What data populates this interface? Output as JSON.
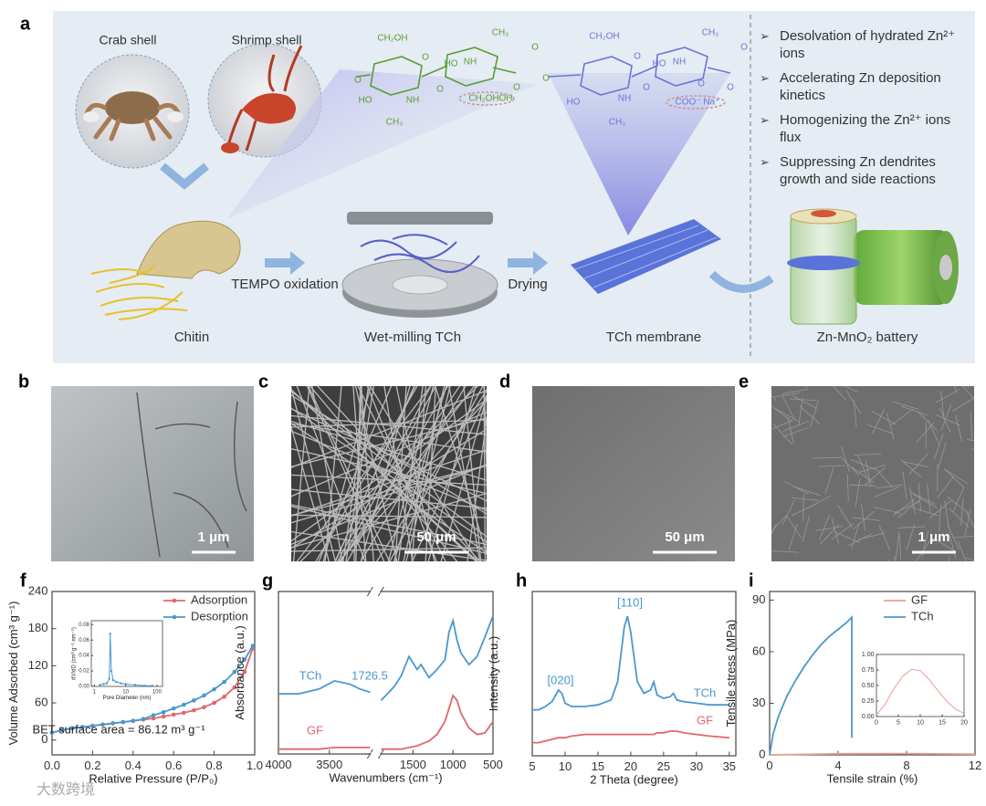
{
  "figure": {
    "panel_a": {
      "label": "a",
      "sources": [
        "Crab shell",
        "Shrimp shell"
      ],
      "steps": [
        "Chitin",
        "TEMPO oxidation",
        "Wet-milling TCh",
        "Drying",
        "TCh membrane",
        "Zn-MnO₂ battery"
      ],
      "benefits": [
        "Desolvation of hydrated Zn²⁺ ions",
        "Accelerating Zn deposition kinetics",
        "Homogenizing the Zn²⁺ ions flux",
        "Suppressing Zn dendrites growth and side reactions"
      ],
      "chemistry": [
        "CH₂OH",
        "O",
        "O",
        "HO",
        "NH",
        "O",
        "CH₃",
        "CH₃",
        "O",
        "NH",
        "HO",
        "O",
        "CH₂OH",
        "OH",
        "O",
        "CH₂OH",
        "O",
        "HO",
        "NH",
        "O",
        "CH₃",
        "CH₃",
        "O",
        "NH",
        "HO",
        "O",
        "COO⁻ Na⁺",
        "O"
      ]
    },
    "images": [
      {
        "label": "b",
        "scale_bar": "1 μm"
      },
      {
        "label": "c",
        "scale_bar": "50 μm"
      },
      {
        "label": "d",
        "scale_bar": "50 μm"
      },
      {
        "label": "e",
        "scale_bar": "1 μm"
      }
    ],
    "watermark": "大数跨境"
  },
  "chart_data": [
    {
      "type": "line",
      "panel_label": "f",
      "x_label": "Relative Pressure (P/P₀)",
      "y_label": "Volume Adsorbed (cm³ g⁻¹)",
      "xlim": [
        0,
        1
      ],
      "ylim": [
        -24,
        240
      ],
      "xticks": [
        {
          "value": 0,
          "label": "0.0"
        },
        {
          "value": 0.2,
          "label": "0.2"
        },
        {
          "value": 0.4,
          "label": "0.4"
        },
        {
          "value": 0.6,
          "label": "0.6"
        },
        {
          "value": 0.8,
          "label": "0.8"
        },
        {
          "value": 1,
          "label": "1.0"
        }
      ],
      "yticks": [
        0,
        60,
        120,
        180,
        240
      ],
      "legend": "upper right",
      "annotations": [
        "BET surface area = 86.12 m³ g⁻¹"
      ],
      "x": [
        0,
        0.05,
        0.1,
        0.15,
        0.2,
        0.25,
        0.3,
        0.35,
        0.4,
        0.45,
        0.5,
        0.55,
        0.6,
        0.65,
        0.7,
        0.75,
        0.8,
        0.85,
        0.9,
        0.95,
        0.99
      ],
      "series": [
        {
          "name": "Adsorption",
          "color": "#e0676b",
          "marker": "circle",
          "values": [
            12,
            16,
            19,
            21,
            23,
            25,
            27,
            29,
            31,
            33,
            35,
            38,
            41,
            44,
            48,
            53,
            60,
            70,
            85,
            110,
            148
          ]
        },
        {
          "name": "Desorption",
          "color": "#4a97cf",
          "marker": "circle",
          "values": [
            12,
            16,
            19,
            21,
            23,
            25,
            27,
            29,
            31,
            34,
            40,
            45,
            51,
            57,
            64,
            72,
            82,
            94,
            110,
            130,
            152
          ]
        }
      ],
      "inset": {
        "type": "line",
        "x_label": "Pore Diameter (nm)",
        "y_label": "dV/dD (cm³ g⁻¹ nm⁻¹)",
        "xlog": true,
        "xlim": [
          0.8,
          150
        ],
        "ylim": [
          0,
          0.085
        ],
        "xticks": [
          1,
          10,
          100
        ],
        "yticks": [
          {
            "value": 0,
            "label": "0.00"
          },
          {
            "value": 0.02,
            "label": "0.02"
          },
          {
            "value": 0.04,
            "label": "0.04"
          },
          {
            "value": 0.06,
            "label": "0.06"
          },
          {
            "value": 0.08,
            "label": "0.08"
          }
        ],
        "series": [
          {
            "color": "#4a97cf",
            "marker": "circle",
            "x": [
              1.5,
              2,
              2.5,
              3,
              3.2,
              3.5,
              4,
              5,
              7,
              10,
              20,
              40,
              70
            ],
            "values": [
              0.002,
              0.003,
              0.004,
              0.01,
              0.068,
              0.02,
              0.008,
              0.006,
              0.004,
              0.003,
              0.002,
              0.001,
              0.001
            ]
          }
        ]
      }
    },
    {
      "type": "line",
      "panel_label": "g",
      "x_label": "Wavenumbers (cm⁻¹)",
      "y_label": "Absorbance (a.u.)",
      "xlim": [
        4000,
        500
      ],
      "x_break": [
        3100,
        1900
      ],
      "ylim": [
        0,
        100
      ],
      "xticks": [
        4000,
        3500,
        1500,
        1000,
        500
      ],
      "annotations": [
        "1726.5"
      ],
      "x": [
        4000,
        3800,
        3600,
        3450,
        3300,
        3200,
        3100,
        2500,
        1900,
        1800,
        1726.5,
        1650,
        1550,
        1450,
        1400,
        1300,
        1200,
        1100,
        1050,
        1000,
        950,
        900,
        800,
        700,
        600,
        500
      ],
      "series": [
        {
          "name": "TCh",
          "color": "#4a97cf",
          "values": [
            37,
            37,
            40,
            45,
            43,
            40,
            38,
            null,
            33,
            38,
            42,
            48,
            60,
            52,
            55,
            47,
            52,
            58,
            75,
            82,
            70,
            62,
            55,
            60,
            72,
            85
          ]
        },
        {
          "name": "GF",
          "color": "#e0676b",
          "values": [
            3,
            3,
            3,
            4,
            4,
            4,
            4,
            null,
            3,
            3,
            3,
            3,
            4,
            5,
            6,
            8,
            12,
            20,
            28,
            36,
            33,
            25,
            16,
            12,
            13,
            20
          ]
        }
      ]
    },
    {
      "type": "line",
      "panel_label": "h",
      "x_label": "2 Theta (degree)",
      "y_label": "Intensity (a.u.)",
      "xlim": [
        5,
        36
      ],
      "ylim": [
        0,
        100
      ],
      "xticks": [
        5,
        10,
        15,
        20,
        25,
        30,
        35
      ],
      "annotations": [
        "[020]",
        "[110]"
      ],
      "x": [
        5,
        6,
        7,
        8,
        9,
        9.5,
        10,
        11,
        13,
        15,
        17,
        18,
        19,
        19.5,
        20,
        21,
        22,
        23,
        23.5,
        24,
        25,
        26,
        26.5,
        27,
        28,
        30,
        32,
        35
      ],
      "series": [
        {
          "name": "TCh",
          "color": "#4a97cf",
          "values": [
            28,
            28,
            30,
            33,
            40,
            38,
            32,
            30,
            30,
            31,
            34,
            45,
            78,
            85,
            75,
            45,
            38,
            40,
            45,
            37,
            35,
            36,
            38,
            34,
            33,
            32,
            31,
            31
          ]
        },
        {
          "name": "GF",
          "color": "#e0676b",
          "values": [
            8,
            8,
            9,
            10,
            11,
            11,
            11,
            12,
            13,
            13,
            13,
            13,
            13,
            13,
            13,
            13,
            13,
            13,
            13,
            14,
            14,
            15,
            15,
            15,
            14,
            13,
            12,
            11
          ]
        }
      ]
    },
    {
      "type": "line",
      "panel_label": "i",
      "x_label": "Tensile strain (%)",
      "y_label": "Tensile stress (MPa)",
      "xlim": [
        0,
        12
      ],
      "ylim": [
        0,
        95
      ],
      "xticks": [
        0,
        4,
        8,
        12
      ],
      "yticks": [
        0,
        30,
        60,
        90
      ],
      "legend": "upper right",
      "series": [
        {
          "name": "GF",
          "color": "#e8a092",
          "x": [
            0,
            4,
            8,
            12
          ],
          "values": [
            0.02,
            0.65,
            0.76,
            0.4
          ]
        },
        {
          "name": "TCh",
          "color": "#4a97cf",
          "x": [
            0,
            0.2,
            0.5,
            1,
            1.5,
            2,
            2.5,
            3,
            3.5,
            4,
            4.5,
            4.8,
            4.8
          ],
          "values": [
            0,
            12,
            22,
            34,
            43,
            51,
            58,
            64,
            69,
            73,
            77,
            80,
            10
          ]
        }
      ],
      "inset": {
        "type": "line",
        "xlim": [
          0,
          20
        ],
        "ylim": [
          0,
          1
        ],
        "xticks": [
          0,
          5,
          10,
          15,
          20
        ],
        "yticks": [
          {
            "value": 0,
            "label": "0.00"
          },
          {
            "value": 0.25,
            "label": "0.25"
          },
          {
            "value": 0.5,
            "label": "0.50"
          },
          {
            "value": 0.75,
            "label": "0.75"
          },
          {
            "value": 1,
            "label": "1.00"
          }
        ],
        "series": [
          {
            "color": "#e8a092",
            "x": [
              0,
              2,
              4,
              6,
              8,
              10,
              12,
              14,
              16,
              18,
              20
            ],
            "values": [
              0.02,
              0.2,
              0.45,
              0.65,
              0.76,
              0.74,
              0.6,
              0.42,
              0.25,
              0.12,
              0.05
            ]
          }
        ]
      }
    }
  ]
}
